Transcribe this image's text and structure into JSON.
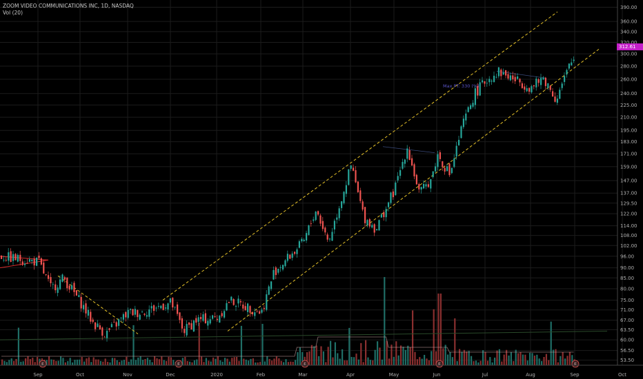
{
  "legend": {
    "symbol_line": "ZOOM VIDEO COMMUNICATIONS INC, 1D, NASDAQ",
    "volume_line": "Vol (20)"
  },
  "annotation": {
    "text": "Max PT: 330 (%)"
  },
  "current_price": "312.61",
  "earnings_marker": "E",
  "colors": {
    "background": "#000000",
    "up": "#26a69a",
    "down": "#ef5350",
    "channel": "#e6c229",
    "price_tag": "#c41fc8",
    "annotation": "#5b55c9",
    "wedge": "#d62b2b",
    "ma": "#c8a0a0"
  },
  "chart_data": {
    "type": "candlestick",
    "title": "ZOOM VIDEO COMMUNICATIONS INC, 1D, NASDAQ",
    "indicator": "Vol (20)",
    "y_scale": "log",
    "ylim": [
      52,
      400
    ],
    "y_ticks": [
      "390.00",
      "360.00",
      "340.00",
      "320.00",
      "300.00",
      "280.00",
      "260.00",
      "240.00",
      "225.00",
      "210.00",
      "195.00",
      "183.00",
      "171.00",
      "159.00",
      "147.00",
      "137.00",
      "129.50",
      "122.00",
      "114.00",
      "108.00",
      "102.00",
      "96.00",
      "90.00",
      "85.00",
      "80.00",
      "75.00",
      "71.00",
      "67.00",
      "63.50",
      "60.00",
      "56.50",
      "53.50"
    ],
    "x_ticks": [
      "Sep",
      "Oct",
      "Nov",
      "Dec",
      "2020",
      "Feb",
      "Mar",
      "Apr",
      "May",
      "Jun",
      "Jul",
      "Aug",
      "Sep",
      "Oct"
    ],
    "price_path": [
      [
        "Aug",
        96
      ],
      [
        "Sep",
        93
      ],
      [
        "Sep",
        80
      ],
      [
        "Sep",
        85
      ],
      [
        "Oct",
        74
      ],
      [
        "Oct",
        66
      ],
      [
        "Oct",
        62
      ],
      [
        "Nov",
        70
      ],
      [
        "Nov",
        70
      ],
      [
        "Dec",
        74
      ],
      [
        "Dec",
        63
      ],
      [
        "Dec",
        67
      ],
      [
        "2020",
        68
      ],
      [
        "2020",
        75
      ],
      [
        "Feb",
        70
      ],
      [
        "Feb",
        88
      ],
      [
        "Mar",
        104
      ],
      [
        "Mar",
        125
      ],
      [
        "Mar",
        104
      ],
      [
        "Apr",
        160
      ],
      [
        "Apr",
        120
      ],
      [
        "Apr",
        112
      ],
      [
        "May",
        140
      ],
      [
        "May",
        178
      ],
      [
        "May",
        136
      ],
      [
        "May",
        150
      ],
      [
        "Jun",
        170
      ],
      [
        "Jun",
        152
      ],
      [
        "Jun",
        200
      ],
      [
        "Jun",
        240
      ],
      [
        "Jul",
        258
      ],
      [
        "Jul",
        272
      ],
      [
        "Aug",
        248
      ],
      [
        "Aug",
        262
      ],
      [
        "Aug",
        232
      ],
      [
        "Sep",
        282
      ],
      [
        "Sep",
        310
      ]
    ],
    "last_price": 312.61,
    "earnings_dates": [
      "Sep",
      "Dec",
      "Mar",
      "Jun",
      "Sep"
    ],
    "trend_lines": [
      {
        "name": "channel-upper",
        "from": [
          "Dec",
          75
        ],
        "to": [
          "Sep",
          380
        ]
      },
      {
        "name": "channel-lower",
        "from": [
          "2020",
          63
        ],
        "to": [
          "Sep",
          308
        ]
      }
    ]
  }
}
